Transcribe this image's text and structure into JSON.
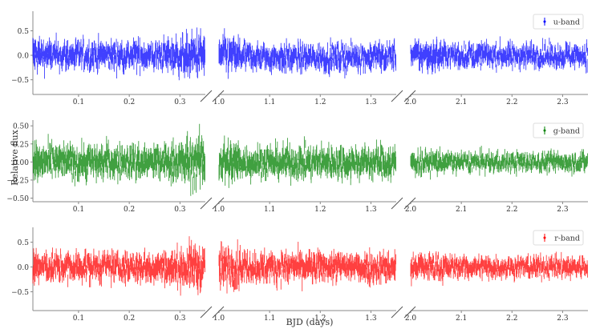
{
  "chart_data": {
    "type": "scatter",
    "subtype": "errorbar light curves with broken x-axis",
    "xlabel": "BJD (days)",
    "ylabel": "Relative flux",
    "x_segments": [
      {
        "range": [
          0.01,
          0.35
        ],
        "ticks": [
          0.1,
          0.2,
          0.3
        ],
        "tick_labels": [
          "0.1",
          "0.2",
          "0.3"
        ]
      },
      {
        "range": [
          1.0,
          1.35
        ],
        "ticks": [
          1.0,
          1.1,
          1.2,
          1.3
        ],
        "tick_labels": [
          "1.0",
          "1.1",
          "1.2",
          "1.3"
        ]
      },
      {
        "range": [
          2.0,
          2.35
        ],
        "ticks": [
          2.0,
          2.1,
          2.2,
          2.3
        ],
        "tick_labels": [
          "2.0",
          "2.1",
          "2.2",
          "2.3"
        ]
      }
    ],
    "panels": [
      {
        "name": "u-band",
        "legend": "u-band",
        "color": "#0000ff",
        "ylim": [
          -0.8,
          0.9
        ],
        "yticks": [
          -0.5,
          0.0,
          0.5
        ],
        "ytick_labels": [
          "−0.5",
          "0.0",
          "0.5"
        ],
        "noise_amplitude": [
          0.22,
          0.2,
          0.18
        ],
        "trend": "mostly flat around 0.0, increasing scatter near 0.33, dip around 1.1-1.15"
      },
      {
        "name": "g-band",
        "legend": "g-band",
        "color": "#008000",
        "ylim": [
          -0.55,
          0.58
        ],
        "yticks": [
          -0.5,
          -0.25,
          0.0,
          0.25,
          0.5
        ],
        "ytick_labels": [
          "−0.50",
          "−0.25",
          "0.00",
          "0.25",
          "0.50"
        ],
        "noise_amplitude": [
          0.17,
          0.16,
          0.1
        ],
        "trend": "flat around 0.0, increasing scatter near 0.33"
      },
      {
        "name": "r-band",
        "legend": "r-band",
        "color": "#ff0000",
        "ylim": [
          -0.88,
          0.8
        ],
        "yticks": [
          -0.5,
          0.0,
          0.5
        ],
        "ytick_labels": [
          "−0.5",
          "0.0",
          "0.5"
        ],
        "noise_amplitude": [
          0.22,
          0.22,
          0.16
        ],
        "trend": "flat around 0.0, increasing scatter near 0.33 and 1.25-1.3"
      }
    ],
    "grid": false,
    "legend_position": "upper right"
  }
}
